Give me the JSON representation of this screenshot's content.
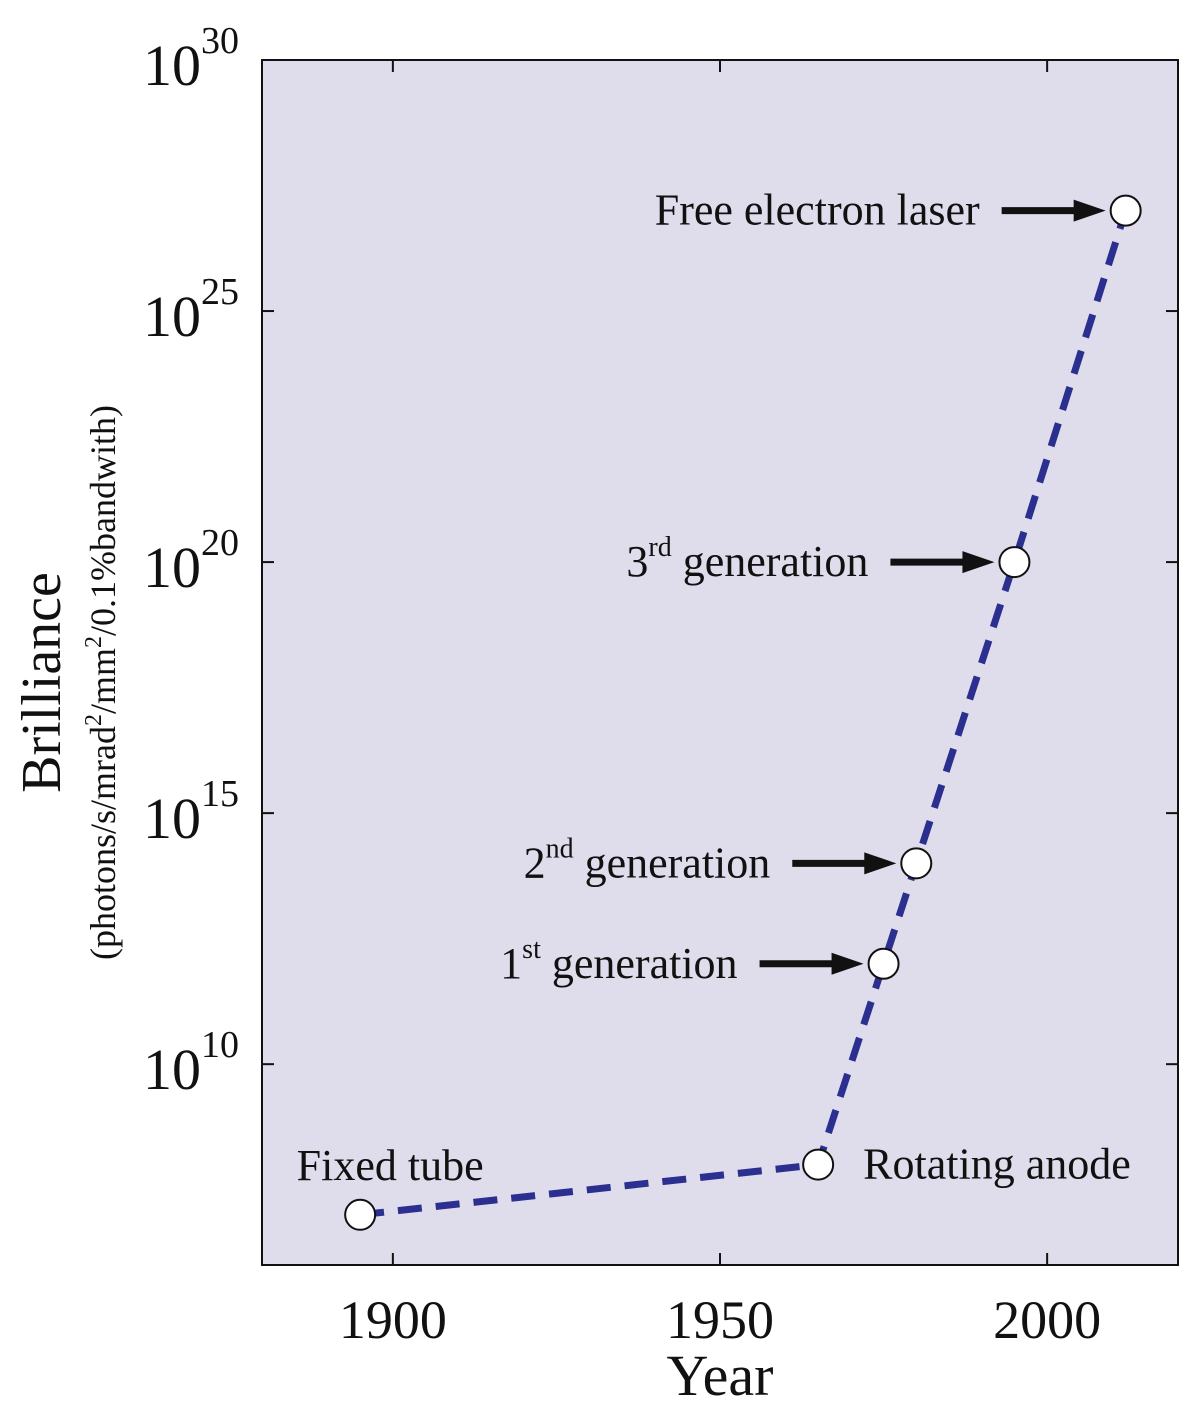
{
  "chart_data": {
    "type": "line",
    "title": "",
    "xlabel": "Year",
    "ylabel": {
      "main": "Brilliance",
      "unit_parts": [
        "(photons/s/mrad",
        "2",
        "/mm",
        "2",
        "/0.1%bandwith)"
      ]
    },
    "xlim": [
      1880,
      2020
    ],
    "ylim_log10": [
      6,
      30
    ],
    "y_scale": "log",
    "grid": false,
    "xticks": [
      {
        "value": 1900,
        "label": "1900"
      },
      {
        "value": 1950,
        "label": "1950"
      },
      {
        "value": 2000,
        "label": "2000"
      }
    ],
    "yticks": [
      {
        "exp": 10,
        "base": "10",
        "sup": "10"
      },
      {
        "exp": 15,
        "base": "10",
        "sup": "15"
      },
      {
        "exp": 20,
        "base": "10",
        "sup": "20"
      },
      {
        "exp": 25,
        "base": "10",
        "sup": "25"
      },
      {
        "exp": 30,
        "base": "10",
        "sup": "30"
      }
    ],
    "series": [
      {
        "line_style": "dashed",
        "color": "#2b2f8f",
        "marker": "open-circle",
        "points": [
          {
            "x": 1895,
            "log10_y": 7.0,
            "label_main": "Fixed tube",
            "label_sup": "",
            "label_rest": "",
            "label_position": "above",
            "arrow": false
          },
          {
            "x": 1965,
            "log10_y": 8.0,
            "label_main": "Rotating anode",
            "label_sup": "",
            "label_rest": "",
            "label_position": "right",
            "arrow": false
          },
          {
            "x": 1975,
            "log10_y": 12.0,
            "label_main": "1",
            "label_sup": "st",
            "label_rest": " generation",
            "label_position": "left",
            "arrow": true
          },
          {
            "x": 1980,
            "log10_y": 14.0,
            "label_main": "2",
            "label_sup": "nd",
            "label_rest": " generation",
            "label_position": "left",
            "arrow": true
          },
          {
            "x": 1995,
            "log10_y": 20.0,
            "label_main": "3",
            "label_sup": "rd",
            "label_rest": " generation",
            "label_position": "left",
            "arrow": true
          },
          {
            "x": 2012,
            "log10_y": 27.0,
            "label_main": "Free electron laser",
            "label_sup": "",
            "label_rest": "",
            "label_position": "left",
            "arrow": true
          }
        ]
      }
    ],
    "colors": {
      "plot_background": "#dfdcec",
      "axis": "#111111",
      "marker_fill": "#ffffff",
      "arrow": "#111111"
    }
  }
}
